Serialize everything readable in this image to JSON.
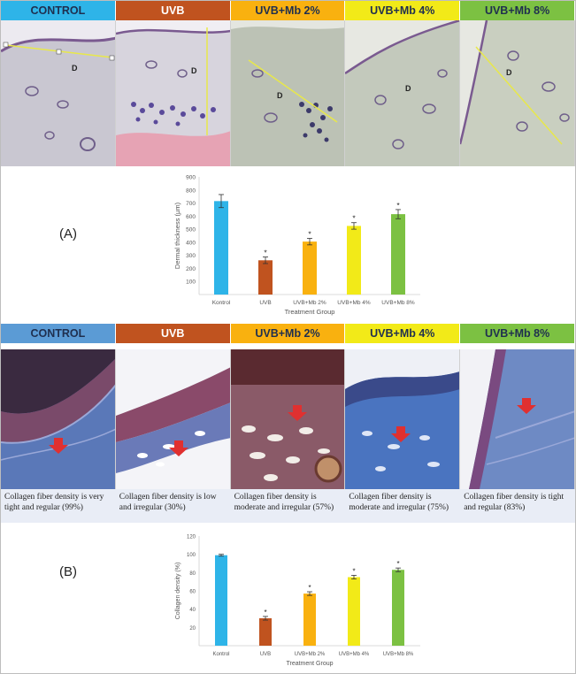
{
  "groups": [
    {
      "label": "CONTROL",
      "color": "#2eb4e8",
      "text": "dark"
    },
    {
      "label": "UVB",
      "color": "#c0531f",
      "text": "light"
    },
    {
      "label": "UVB+Mb 2%",
      "color": "#f9b10f",
      "text": "dark"
    },
    {
      "label": "UVB+Mb 4%",
      "color": "#f2ea18",
      "text": "dark"
    },
    {
      "label": "UVB+Mb 8%",
      "color": "#7cc142",
      "text": "dark"
    }
  ],
  "groups_b_header_colors": [
    "#5b9bd5",
    "#c0531f",
    "#f9b10f",
    "#f2ea18",
    "#7cc142"
  ],
  "he_images": {
    "marker": "D",
    "tissue_colors": [
      "#c7c5cf",
      "#d6d3dc",
      "#b9bfb2",
      "#c3c9bc",
      "#c9cfc0"
    ]
  },
  "masson_images": {
    "arrow_color": "#e03030",
    "tissue_colors": [
      "#5a7ab8",
      "#f2f2f6",
      "#8a5060",
      "#4a74c0",
      "#6e8ac4"
    ]
  },
  "captions": [
    "Collagen fiber density is very tight and regular (99%)",
    "Collagen fiber density is low and irregular (30%)",
    "Collagen fiber density is moderate and irregular (57%)",
    "Collagen fiber density is moderate and irregular (75%)",
    "Collagen fiber density is tight and regular (83%)"
  ],
  "panel_a_label": "(A)",
  "panel_b_label": "(B)",
  "chart_data": [
    {
      "type": "bar",
      "categories": [
        "Kontrol",
        "UVB",
        "UVB+Mb 2%",
        "UVB+Mb 4%",
        "UVB+Mb 8%"
      ],
      "values": [
        715,
        262,
        405,
        525,
        615
      ],
      "errors": [
        50,
        25,
        25,
        25,
        35
      ],
      "annotations": [
        "",
        "*",
        "*",
        "*",
        "*"
      ],
      "colors": [
        "#2eb4e8",
        "#c0531f",
        "#f9b10f",
        "#f2ea18",
        "#7cc142"
      ],
      "xlabel": "Treatment Group",
      "ylabel": "Dermal thickness (µm)",
      "yticks": [
        100,
        200,
        300,
        400,
        500,
        600,
        700,
        800,
        900
      ],
      "ylim": [
        0,
        900
      ],
      "grid": false
    },
    {
      "type": "bar",
      "categories": [
        "Kontrol",
        "UVB",
        "UVB+Mb 2%",
        "UVB+Mb 4%",
        "UVB+Mb 8%"
      ],
      "values": [
        99,
        30,
        57,
        75,
        83
      ],
      "errors": [
        1,
        2,
        2,
        2,
        2
      ],
      "annotations": [
        "",
        "*",
        "*",
        "*",
        "*"
      ],
      "colors": [
        "#2eb4e8",
        "#c0531f",
        "#f9b10f",
        "#f2ea18",
        "#7cc142"
      ],
      "xlabel": "Treatment Group",
      "ylabel": "Collagen density (%)",
      "yticks": [
        20,
        40,
        60,
        80,
        100,
        120
      ],
      "ylim": [
        0,
        120
      ],
      "grid": false
    }
  ]
}
